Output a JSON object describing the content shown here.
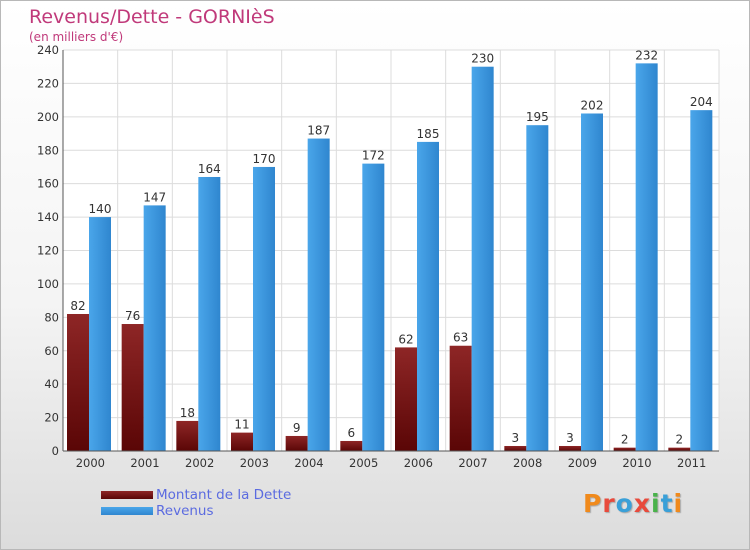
{
  "chart_data": {
    "type": "bar",
    "title": "Revenus/Dette - GORNIèS",
    "subtitle": "(en milliers d'€)",
    "categories": [
      "2000",
      "2001",
      "2002",
      "2003",
      "2004",
      "2005",
      "2006",
      "2007",
      "2008",
      "2009",
      "2010",
      "2011"
    ],
    "series": [
      {
        "name": "Montant de la Dette",
        "values": [
          82,
          76,
          18,
          11,
          9,
          6,
          62,
          63,
          3,
          3,
          2,
          2
        ],
        "color": "#7a1414"
      },
      {
        "name": "Revenus",
        "values": [
          140,
          147,
          164,
          170,
          187,
          172,
          185,
          230,
          195,
          202,
          232,
          204
        ],
        "color": "#3e9be0"
      }
    ],
    "ylim": [
      0,
      240
    ],
    "yticks": [
      0,
      20,
      40,
      60,
      80,
      100,
      120,
      140,
      160,
      180,
      200,
      220,
      240
    ],
    "grid": true,
    "legend_position": "bottom-left"
  },
  "logo": {
    "text": "Proxiti",
    "colors": [
      "#f08a1c",
      "#e84a3c",
      "#3aa0d8",
      "#e84a3c",
      "#49b24a",
      "#3aa0d8",
      "#f08a1c"
    ]
  }
}
